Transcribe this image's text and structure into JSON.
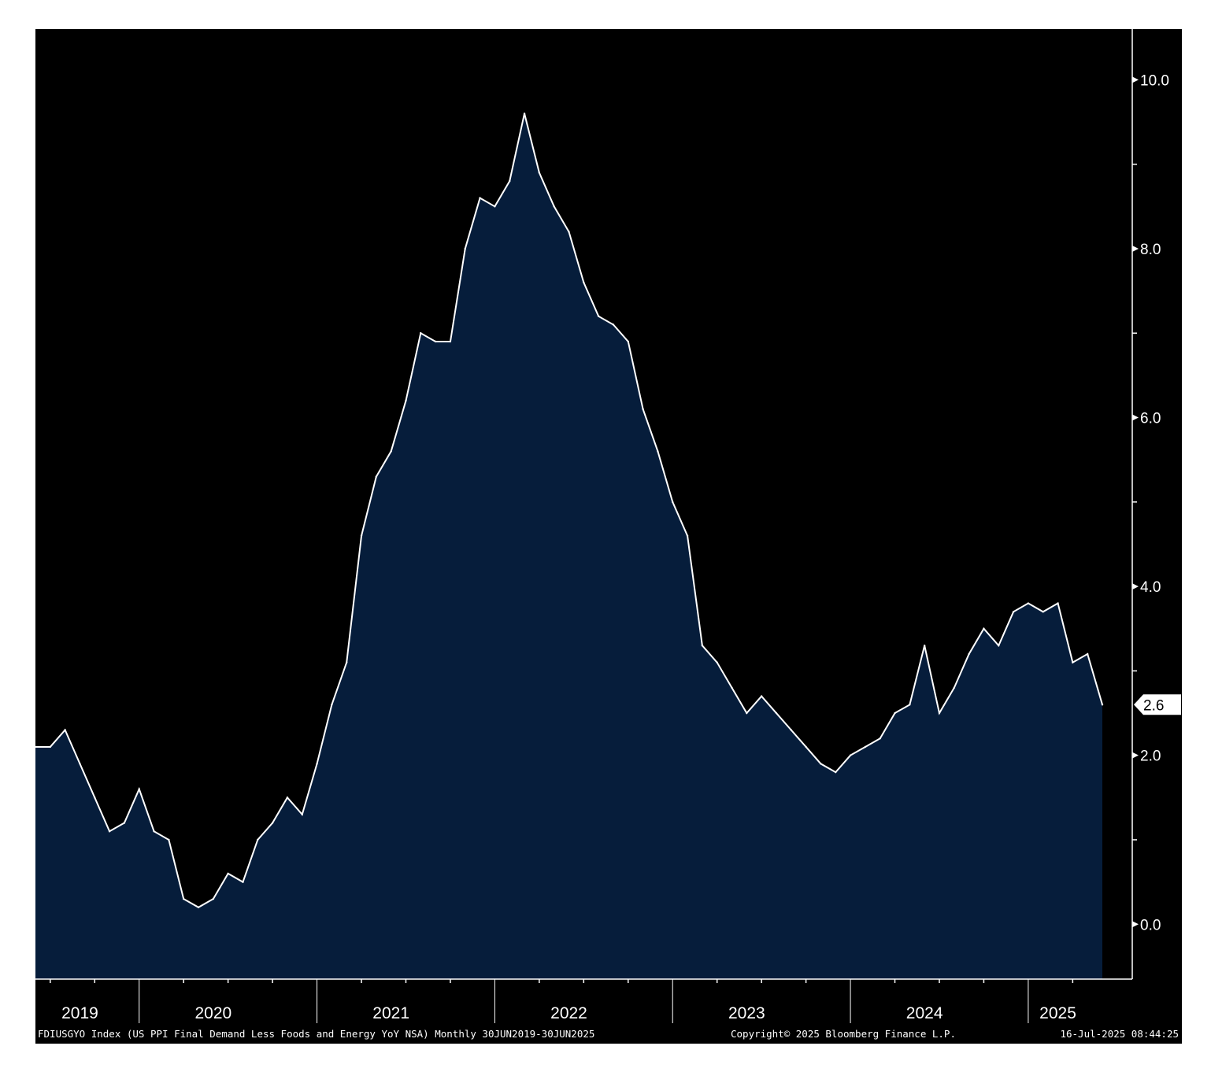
{
  "colors": {
    "background": "#000000",
    "area_fill": "#061d3b",
    "line": "#ffffff",
    "axis": "#ffffff",
    "last_value_bg": "#ffffff",
    "last_value_text": "#000000"
  },
  "footer": {
    "description": "FDIUSGYO Index (US PPI Final Demand Less Foods and Energy YoY NSA)  Monthly 30JUN2019-30JUN2025",
    "copyright": "Copyright© 2025 Bloomberg Finance L.P.",
    "timestamp": "16-Jul-2025 08:44:25"
  },
  "chart_data": {
    "type": "area",
    "x_start": "2019-06",
    "x_end": "2025-06",
    "frequency": "Monthly",
    "x": [
      "2019-06",
      "2019-07",
      "2019-08",
      "2019-09",
      "2019-10",
      "2019-11",
      "2019-12",
      "2020-01",
      "2020-02",
      "2020-03",
      "2020-04",
      "2020-05",
      "2020-06",
      "2020-07",
      "2020-08",
      "2020-09",
      "2020-10",
      "2020-11",
      "2020-12",
      "2021-01",
      "2021-02",
      "2021-03",
      "2021-04",
      "2021-05",
      "2021-06",
      "2021-07",
      "2021-08",
      "2021-09",
      "2021-10",
      "2021-11",
      "2021-12",
      "2022-01",
      "2022-02",
      "2022-03",
      "2022-04",
      "2022-05",
      "2022-06",
      "2022-07",
      "2022-08",
      "2022-09",
      "2022-10",
      "2022-11",
      "2022-12",
      "2023-01",
      "2023-02",
      "2023-03",
      "2023-04",
      "2023-05",
      "2023-06",
      "2023-07",
      "2023-08",
      "2023-09",
      "2023-10",
      "2023-11",
      "2023-12",
      "2024-01",
      "2024-02",
      "2024-03",
      "2024-04",
      "2024-05",
      "2024-06",
      "2024-07",
      "2024-08",
      "2024-09",
      "2024-10",
      "2024-11",
      "2024-12",
      "2025-01",
      "2025-02",
      "2025-03",
      "2025-04",
      "2025-05",
      "2025-06"
    ],
    "values": [
      2.1,
      2.1,
      2.3,
      1.9,
      1.5,
      1.1,
      1.2,
      1.6,
      1.1,
      1.0,
      0.3,
      0.2,
      0.3,
      0.6,
      0.5,
      1.0,
      1.2,
      1.5,
      1.3,
      1.9,
      2.6,
      3.1,
      4.6,
      5.3,
      5.6,
      6.2,
      7.0,
      6.9,
      6.9,
      8.0,
      8.6,
      8.5,
      8.8,
      9.6,
      8.9,
      8.5,
      8.2,
      7.6,
      7.2,
      7.1,
      6.9,
      6.1,
      5.6,
      5.0,
      4.6,
      3.3,
      3.1,
      2.8,
      2.5,
      2.7,
      2.5,
      2.3,
      2.1,
      1.9,
      1.8,
      2.0,
      2.1,
      2.2,
      2.5,
      2.6,
      3.3,
      2.5,
      2.8,
      3.2,
      3.5,
      3.3,
      3.7,
      3.8,
      3.7,
      3.8,
      3.1,
      3.2,
      2.6
    ],
    "last_value_label": "2.6",
    "yticks": [
      {
        "value": 10.0,
        "label": "10.0"
      },
      {
        "value": 8.0,
        "label": "8.0"
      },
      {
        "value": 6.0,
        "label": "6.0"
      },
      {
        "value": 4.0,
        "label": "4.0"
      },
      {
        "value": 2.0,
        "label": "2.0"
      },
      {
        "value": 0.0,
        "label": "0.0"
      }
    ],
    "yminor_ticks": [
      9.0,
      7.0,
      5.0,
      3.0,
      1.0
    ],
    "ylim": [
      -0.65,
      10.6
    ],
    "xtick_years": [
      {
        "label": "2019",
        "start": "2019-06",
        "end": "2019-12"
      },
      {
        "label": "2020",
        "start": "2019-12",
        "end": "2020-12"
      },
      {
        "label": "2021",
        "start": "2020-12",
        "end": "2021-12"
      },
      {
        "label": "2022",
        "start": "2021-12",
        "end": "2022-12"
      },
      {
        "label": "2023",
        "start": "2022-12",
        "end": "2023-12"
      },
      {
        "label": "2024",
        "start": "2023-12",
        "end": "2024-12"
      },
      {
        "label": "2025",
        "start": "2024-12",
        "end": "2025-06"
      }
    ],
    "grid": false,
    "yaxis_position": "right"
  }
}
